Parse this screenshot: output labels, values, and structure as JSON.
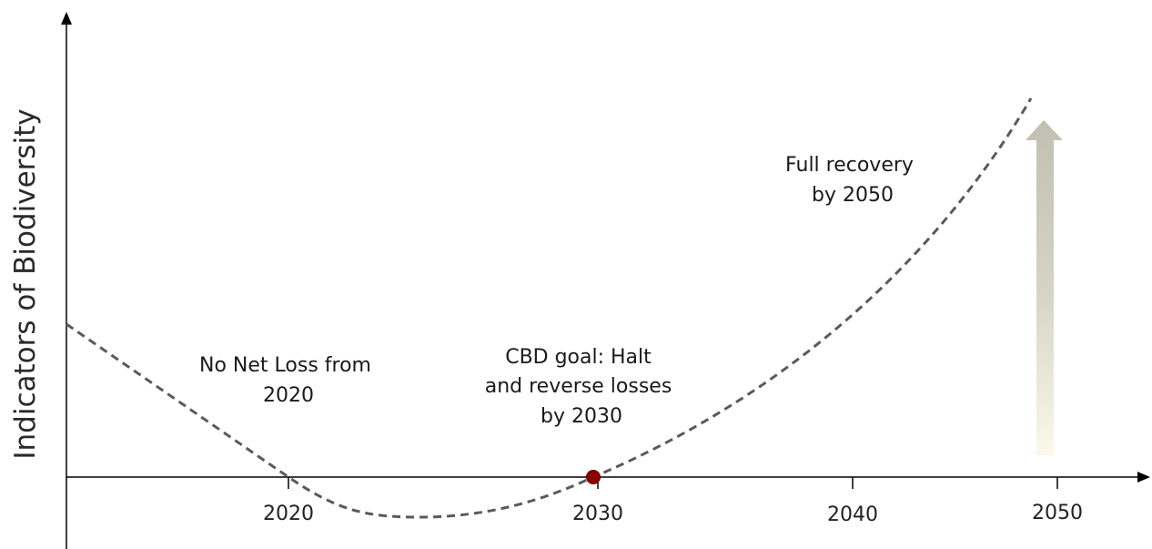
{
  "chart_data": {
    "type": "line",
    "ylabel": "Indicators of Biodiversity",
    "xlabel": "",
    "x_ticks": [
      "2020",
      "2030",
      "2040",
      "2050"
    ],
    "annotations": [
      {
        "id": "no-net-loss",
        "lines": [
          "No Net Loss from",
          "2020"
        ]
      },
      {
        "id": "cbd-goal",
        "lines": [
          "CBD goal: Halt",
          "and reverse losses",
          "by 2030"
        ]
      },
      {
        "id": "full-recovery",
        "lines": [
          "Full recovery",
          "by 2050"
        ]
      }
    ],
    "milestone_marker": {
      "x": 2030,
      "color": "#8b0000"
    },
    "curve_color": "#5a5a5a",
    "arrow_gradient": [
      "#c2c0b2",
      "#fbf8ec"
    ]
  }
}
